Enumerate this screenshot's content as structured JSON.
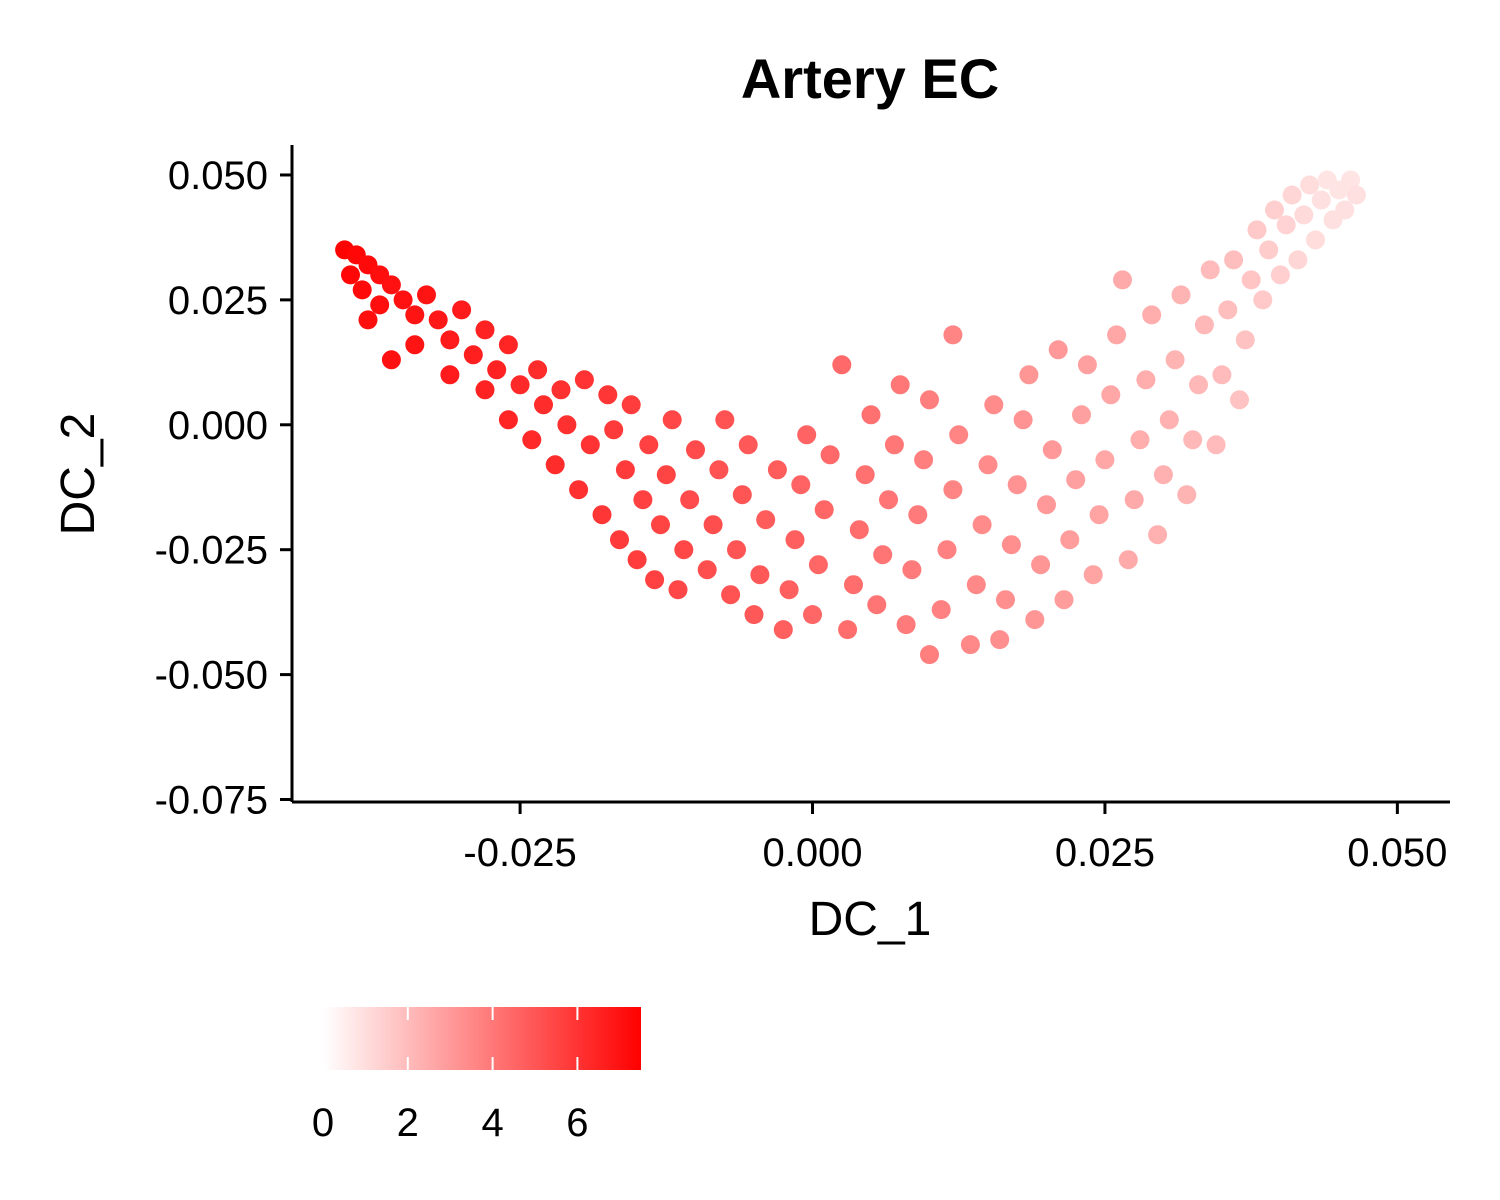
{
  "chart_data": {
    "type": "scatter",
    "title": "Artery EC",
    "xlabel": "DC_1",
    "ylabel": "DC_2",
    "xlim": [
      -0.0445,
      0.0545
    ],
    "ylim": [
      -0.0755,
      0.056
    ],
    "xticks": [
      -0.025,
      0.0,
      0.025,
      0.05
    ],
    "xtick_labels": [
      "-0.025",
      "0.000",
      "0.025",
      "0.050"
    ],
    "yticks": [
      0.05,
      0.025,
      0.0,
      -0.025,
      -0.05,
      -0.075
    ],
    "ytick_labels": [
      "0.050",
      "0.025",
      "0.000",
      "-0.025",
      "-0.050",
      "-0.075"
    ],
    "color_scale": {
      "low_color": "#ffffff",
      "high_color": "#ff0000",
      "min": 0,
      "max": 7.5,
      "ticks": [
        0,
        2,
        4,
        6
      ],
      "tick_labels": [
        "0",
        "2",
        "4",
        "6"
      ]
    },
    "legend_position": "bottom",
    "point_color_value_rule": "value decreases from about 7.4 at the far left to about 0.8 at the far right",
    "points": [
      {
        "x": -0.04,
        "y": 0.035,
        "v": 7.4
      },
      {
        "x": -0.039,
        "y": 0.034,
        "v": 7.3
      },
      {
        "x": -0.038,
        "y": 0.032,
        "v": 7.2
      },
      {
        "x": -0.0395,
        "y": 0.03,
        "v": 7.3
      },
      {
        "x": -0.037,
        "y": 0.03,
        "v": 7.1
      },
      {
        "x": -0.0385,
        "y": 0.027,
        "v": 7.2
      },
      {
        "x": -0.036,
        "y": 0.028,
        "v": 7.0
      },
      {
        "x": -0.037,
        "y": 0.024,
        "v": 7.1
      },
      {
        "x": -0.035,
        "y": 0.025,
        "v": 7.0
      },
      {
        "x": -0.038,
        "y": 0.021,
        "v": 7.1
      },
      {
        "x": -0.034,
        "y": 0.022,
        "v": 6.9
      },
      {
        "x": -0.033,
        "y": 0.026,
        "v": 6.9
      },
      {
        "x": -0.032,
        "y": 0.021,
        "v": 6.8
      },
      {
        "x": -0.036,
        "y": 0.013,
        "v": 7.0
      },
      {
        "x": -0.034,
        "y": 0.016,
        "v": 6.9
      },
      {
        "x": -0.03,
        "y": 0.023,
        "v": 6.7
      },
      {
        "x": -0.031,
        "y": 0.017,
        "v": 6.7
      },
      {
        "x": -0.029,
        "y": 0.014,
        "v": 6.6
      },
      {
        "x": -0.031,
        "y": 0.01,
        "v": 6.7
      },
      {
        "x": -0.028,
        "y": 0.019,
        "v": 6.5
      },
      {
        "x": -0.027,
        "y": 0.011,
        "v": 6.5
      },
      {
        "x": -0.028,
        "y": 0.007,
        "v": 6.5
      },
      {
        "x": -0.026,
        "y": 0.016,
        "v": 6.4
      },
      {
        "x": -0.025,
        "y": 0.008,
        "v": 6.3
      },
      {
        "x": -0.026,
        "y": 0.001,
        "v": 6.4
      },
      {
        "x": -0.0235,
        "y": 0.011,
        "v": 6.2
      },
      {
        "x": -0.023,
        "y": 0.004,
        "v": 6.2
      },
      {
        "x": -0.024,
        "y": -0.003,
        "v": 6.3
      },
      {
        "x": -0.0215,
        "y": 0.007,
        "v": 6.1
      },
      {
        "x": -0.021,
        "y": 0.0,
        "v": 6.1
      },
      {
        "x": -0.022,
        "y": -0.008,
        "v": 6.2
      },
      {
        "x": -0.0195,
        "y": 0.009,
        "v": 6.0
      },
      {
        "x": -0.019,
        "y": -0.004,
        "v": 6.0
      },
      {
        "x": -0.02,
        "y": -0.013,
        "v": 6.1
      },
      {
        "x": -0.0175,
        "y": 0.006,
        "v": 5.9
      },
      {
        "x": -0.017,
        "y": -0.001,
        "v": 5.8
      },
      {
        "x": -0.018,
        "y": -0.018,
        "v": 5.9
      },
      {
        "x": -0.016,
        "y": -0.009,
        "v": 5.8
      },
      {
        "x": -0.0155,
        "y": 0.004,
        "v": 5.7
      },
      {
        "x": -0.0165,
        "y": -0.023,
        "v": 5.8
      },
      {
        "x": -0.0145,
        "y": -0.015,
        "v": 5.6
      },
      {
        "x": -0.014,
        "y": -0.004,
        "v": 5.6
      },
      {
        "x": -0.015,
        "y": -0.027,
        "v": 5.7
      },
      {
        "x": -0.013,
        "y": -0.02,
        "v": 5.5
      },
      {
        "x": -0.0125,
        "y": -0.01,
        "v": 5.5
      },
      {
        "x": -0.012,
        "y": 0.001,
        "v": 5.4
      },
      {
        "x": -0.0135,
        "y": -0.031,
        "v": 5.6
      },
      {
        "x": -0.011,
        "y": -0.025,
        "v": 5.4
      },
      {
        "x": -0.0105,
        "y": -0.015,
        "v": 5.3
      },
      {
        "x": -0.01,
        "y": -0.005,
        "v": 5.3
      },
      {
        "x": -0.0115,
        "y": -0.033,
        "v": 5.4
      },
      {
        "x": -0.009,
        "y": -0.029,
        "v": 5.2
      },
      {
        "x": -0.0085,
        "y": -0.02,
        "v": 5.2
      },
      {
        "x": -0.008,
        "y": -0.009,
        "v": 5.1
      },
      {
        "x": -0.0075,
        "y": 0.001,
        "v": 5.1
      },
      {
        "x": -0.007,
        "y": -0.034,
        "v": 5.1
      },
      {
        "x": -0.0065,
        "y": -0.025,
        "v": 5.0
      },
      {
        "x": -0.006,
        "y": -0.014,
        "v": 5.0
      },
      {
        "x": -0.0055,
        "y": -0.004,
        "v": 4.9
      },
      {
        "x": -0.005,
        "y": -0.038,
        "v": 4.9
      },
      {
        "x": -0.0045,
        "y": -0.03,
        "v": 4.9
      },
      {
        "x": -0.004,
        "y": -0.019,
        "v": 4.8
      },
      {
        "x": -0.003,
        "y": -0.009,
        "v": 4.8
      },
      {
        "x": -0.0025,
        "y": -0.041,
        "v": 4.7
      },
      {
        "x": -0.002,
        "y": -0.033,
        "v": 4.7
      },
      {
        "x": -0.0015,
        "y": -0.023,
        "v": 4.7
      },
      {
        "x": -0.001,
        "y": -0.012,
        "v": 4.6
      },
      {
        "x": -0.0005,
        "y": -0.002,
        "v": 4.6
      },
      {
        "x": 0.0,
        "y": -0.038,
        "v": 4.5
      },
      {
        "x": 0.0005,
        "y": -0.028,
        "v": 4.5
      },
      {
        "x": 0.001,
        "y": -0.017,
        "v": 4.5
      },
      {
        "x": 0.0015,
        "y": -0.006,
        "v": 4.4
      },
      {
        "x": 0.0025,
        "y": 0.012,
        "v": 4.4
      },
      {
        "x": 0.003,
        "y": -0.041,
        "v": 4.3
      },
      {
        "x": 0.0035,
        "y": -0.032,
        "v": 4.3
      },
      {
        "x": 0.004,
        "y": -0.021,
        "v": 4.3
      },
      {
        "x": 0.0045,
        "y": -0.01,
        "v": 4.2
      },
      {
        "x": 0.005,
        "y": 0.002,
        "v": 4.2
      },
      {
        "x": 0.0055,
        "y": -0.036,
        "v": 4.1
      },
      {
        "x": 0.006,
        "y": -0.026,
        "v": 4.1
      },
      {
        "x": 0.0065,
        "y": -0.015,
        "v": 4.1
      },
      {
        "x": 0.007,
        "y": -0.004,
        "v": 4.0
      },
      {
        "x": 0.0075,
        "y": 0.008,
        "v": 4.0
      },
      {
        "x": 0.008,
        "y": -0.04,
        "v": 3.9
      },
      {
        "x": 0.0085,
        "y": -0.029,
        "v": 3.9
      },
      {
        "x": 0.009,
        "y": -0.018,
        "v": 3.9
      },
      {
        "x": 0.0095,
        "y": -0.007,
        "v": 3.8
      },
      {
        "x": 0.01,
        "y": 0.005,
        "v": 3.8
      },
      {
        "x": 0.01,
        "y": -0.046,
        "v": 3.8
      },
      {
        "x": 0.011,
        "y": -0.037,
        "v": 3.7
      },
      {
        "x": 0.0115,
        "y": -0.025,
        "v": 3.7
      },
      {
        "x": 0.012,
        "y": -0.013,
        "v": 3.6
      },
      {
        "x": 0.012,
        "y": 0.018,
        "v": 3.6
      },
      {
        "x": 0.0125,
        "y": -0.002,
        "v": 3.6
      },
      {
        "x": 0.0135,
        "y": -0.044,
        "v": 3.5
      },
      {
        "x": 0.014,
        "y": -0.032,
        "v": 3.5
      },
      {
        "x": 0.0145,
        "y": -0.02,
        "v": 3.4
      },
      {
        "x": 0.015,
        "y": -0.008,
        "v": 3.4
      },
      {
        "x": 0.0155,
        "y": 0.004,
        "v": 3.4
      },
      {
        "x": 0.016,
        "y": -0.043,
        "v": 3.3
      },
      {
        "x": 0.0165,
        "y": -0.035,
        "v": 3.3
      },
      {
        "x": 0.017,
        "y": -0.024,
        "v": 3.3
      },
      {
        "x": 0.0175,
        "y": -0.012,
        "v": 3.2
      },
      {
        "x": 0.018,
        "y": 0.001,
        "v": 3.2
      },
      {
        "x": 0.0185,
        "y": 0.01,
        "v": 3.1
      },
      {
        "x": 0.019,
        "y": -0.039,
        "v": 3.1
      },
      {
        "x": 0.0195,
        "y": -0.028,
        "v": 3.1
      },
      {
        "x": 0.02,
        "y": -0.016,
        "v": 3.0
      },
      {
        "x": 0.0205,
        "y": -0.005,
        "v": 3.0
      },
      {
        "x": 0.021,
        "y": 0.015,
        "v": 3.0
      },
      {
        "x": 0.0215,
        "y": -0.035,
        "v": 2.9
      },
      {
        "x": 0.022,
        "y": -0.023,
        "v": 2.9
      },
      {
        "x": 0.0225,
        "y": -0.011,
        "v": 2.8
      },
      {
        "x": 0.023,
        "y": 0.002,
        "v": 2.8
      },
      {
        "x": 0.0235,
        "y": 0.012,
        "v": 2.8
      },
      {
        "x": 0.024,
        "y": -0.03,
        "v": 2.7
      },
      {
        "x": 0.0245,
        "y": -0.018,
        "v": 2.7
      },
      {
        "x": 0.025,
        "y": -0.007,
        "v": 2.6
      },
      {
        "x": 0.0255,
        "y": 0.006,
        "v": 2.6
      },
      {
        "x": 0.026,
        "y": 0.018,
        "v": 2.6
      },
      {
        "x": 0.0265,
        "y": 0.029,
        "v": 2.5
      },
      {
        "x": 0.027,
        "y": -0.027,
        "v": 2.5
      },
      {
        "x": 0.0275,
        "y": -0.015,
        "v": 2.5
      },
      {
        "x": 0.028,
        "y": -0.003,
        "v": 2.4
      },
      {
        "x": 0.0285,
        "y": 0.009,
        "v": 2.4
      },
      {
        "x": 0.029,
        "y": 0.022,
        "v": 2.4
      },
      {
        "x": 0.0295,
        "y": -0.022,
        "v": 2.3
      },
      {
        "x": 0.03,
        "y": -0.01,
        "v": 2.3
      },
      {
        "x": 0.0305,
        "y": 0.001,
        "v": 2.3
      },
      {
        "x": 0.031,
        "y": 0.013,
        "v": 2.2
      },
      {
        "x": 0.0315,
        "y": 0.026,
        "v": 2.2
      },
      {
        "x": 0.032,
        "y": -0.014,
        "v": 2.2
      },
      {
        "x": 0.0325,
        "y": -0.003,
        "v": 2.1
      },
      {
        "x": 0.033,
        "y": 0.008,
        "v": 2.1
      },
      {
        "x": 0.0335,
        "y": 0.02,
        "v": 2.1
      },
      {
        "x": 0.034,
        "y": 0.031,
        "v": 2.0
      },
      {
        "x": 0.0345,
        "y": -0.004,
        "v": 2.0
      },
      {
        "x": 0.035,
        "y": 0.01,
        "v": 2.0
      },
      {
        "x": 0.0355,
        "y": 0.023,
        "v": 1.9
      },
      {
        "x": 0.036,
        "y": 0.033,
        "v": 1.9
      },
      {
        "x": 0.0365,
        "y": 0.005,
        "v": 1.8
      },
      {
        "x": 0.037,
        "y": 0.017,
        "v": 1.8
      },
      {
        "x": 0.0375,
        "y": 0.029,
        "v": 1.7
      },
      {
        "x": 0.038,
        "y": 0.039,
        "v": 1.6
      },
      {
        "x": 0.0385,
        "y": 0.025,
        "v": 1.6
      },
      {
        "x": 0.039,
        "y": 0.035,
        "v": 1.5
      },
      {
        "x": 0.0395,
        "y": 0.043,
        "v": 1.4
      },
      {
        "x": 0.04,
        "y": 0.03,
        "v": 1.4
      },
      {
        "x": 0.0405,
        "y": 0.04,
        "v": 1.3
      },
      {
        "x": 0.041,
        "y": 0.046,
        "v": 1.2
      },
      {
        "x": 0.0415,
        "y": 0.033,
        "v": 1.2
      },
      {
        "x": 0.042,
        "y": 0.042,
        "v": 1.1
      },
      {
        "x": 0.0425,
        "y": 0.048,
        "v": 1.0
      },
      {
        "x": 0.043,
        "y": 0.037,
        "v": 1.0
      },
      {
        "x": 0.0435,
        "y": 0.045,
        "v": 0.9
      },
      {
        "x": 0.044,
        "y": 0.049,
        "v": 0.8
      },
      {
        "x": 0.0445,
        "y": 0.041,
        "v": 0.9
      },
      {
        "x": 0.045,
        "y": 0.047,
        "v": 0.8
      },
      {
        "x": 0.0455,
        "y": 0.043,
        "v": 0.9
      },
      {
        "x": 0.046,
        "y": 0.049,
        "v": 0.8
      },
      {
        "x": 0.0465,
        "y": 0.046,
        "v": 0.9
      }
    ]
  }
}
